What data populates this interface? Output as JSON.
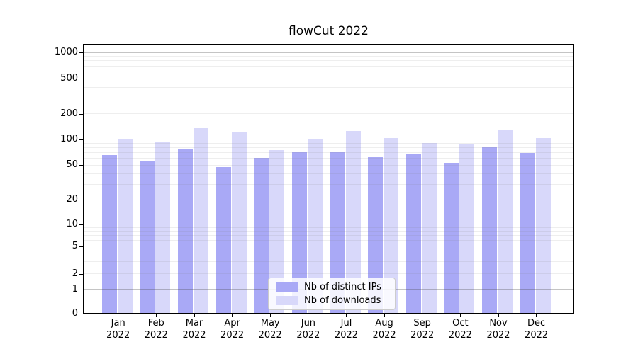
{
  "title": "flowCut 2022",
  "chart_data": {
    "type": "bar",
    "title": "flowCut 2022",
    "yscale": "symlog",
    "grid": "both",
    "legend_position": "lower center",
    "categories": [
      "Jan",
      "Feb",
      "Mar",
      "Apr",
      "May",
      "Jun",
      "Jul",
      "Aug",
      "Sep",
      "Oct",
      "Nov",
      "Dec"
    ],
    "category_year": "2022",
    "yticks": [
      1000,
      500,
      200,
      100,
      50,
      20,
      10,
      5,
      2,
      1,
      0
    ],
    "ylim": [
      0,
      1259
    ],
    "series": [
      {
        "name": "Nb of distinct IPs",
        "color": "#a9a9f6",
        "values": [
          65,
          56,
          78,
          47,
          60,
          71,
          72,
          62,
          66,
          53,
          82,
          69
        ]
      },
      {
        "name": "Nb of downloads",
        "color": "#d8d8fa",
        "values": [
          102,
          94,
          135,
          122,
          75,
          101,
          126,
          103,
          91,
          86,
          131,
          103
        ]
      }
    ]
  },
  "colors": {
    "major_grid": "#b9b9b9",
    "minor_grid": "#ebebeb",
    "axis": "#000000",
    "text": "#000000",
    "legend_border": "#cccccc"
  }
}
